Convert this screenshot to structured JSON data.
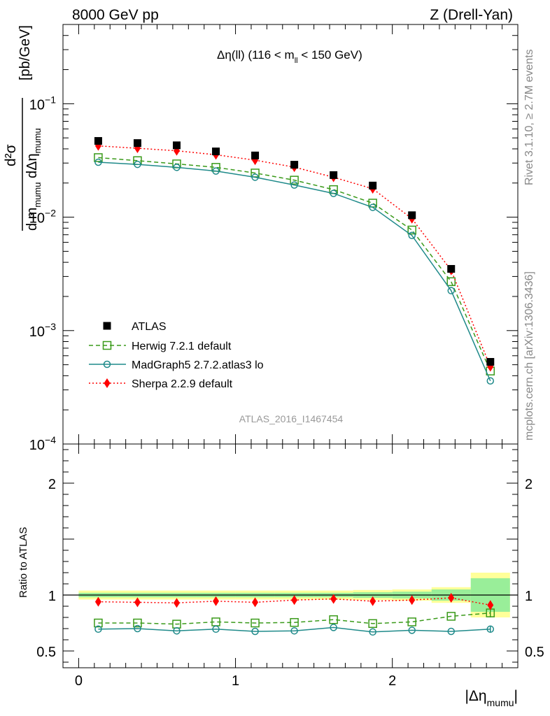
{
  "header": {
    "left_label": "8000 GeV pp",
    "right_label": "Z (Drell-Yan)"
  },
  "side_labels": {
    "rivet": "Rivet 3.1.10, ≥ 2.7M events",
    "mcplots": "mcplots.cern.ch [arXiv:1306.3436]"
  },
  "plot": {
    "title_main": "Δη(ll) (116 < m",
    "title_sub": "ll",
    "title_end": " < 150 GeV)",
    "analysis_id": "ATLAS_2016_I1467454",
    "ylabel_unit": "[pb/GeV]",
    "ylabel_num": "d²σ",
    "ylabel_den": "d m",
    "ylabel_den_sub": "mumu",
    "ylabel_den_mid": " dΔη",
    "ylabel_den_sub2": "mumu",
    "ratio_ylabel": "Ratio to ATLAS",
    "xlabel": "|Δη",
    "xlabel_sub": "mumu",
    "xlabel_end": "|"
  },
  "chart_data": {
    "type": "line",
    "x": [
      0.125,
      0.375,
      0.625,
      0.875,
      1.125,
      1.375,
      1.625,
      1.875,
      2.125,
      2.375,
      2.625
    ],
    "bin_edges": [
      0.0,
      0.25,
      0.5,
      0.75,
      1.0,
      1.25,
      1.5,
      1.75,
      2.0,
      2.25,
      2.5,
      2.75
    ],
    "xlim": [
      -0.1,
      2.8
    ],
    "xticks": [
      0,
      1,
      2
    ],
    "main": {
      "yscale": "log",
      "ylim": [
        0.0001,
        0.5
      ],
      "yticks": [
        {
          "value": 0.1,
          "base": "10",
          "exp": "−1"
        },
        {
          "value": 0.01,
          "base": "10",
          "exp": "−2"
        },
        {
          "value": 0.001,
          "base": "10",
          "exp": "−3"
        },
        {
          "value": 0.0001,
          "base": "10",
          "exp": "−4"
        }
      ]
    },
    "ratio": {
      "ylim": [
        0.35,
        2.35
      ],
      "yticks": [
        0.5,
        1,
        2
      ],
      "ytick_labels": [
        "0.5",
        "1",
        "2"
      ],
      "band_inner": [
        0.02,
        0.02,
        0.02,
        0.02,
        0.02,
        0.02,
        0.02,
        0.025,
        0.03,
        0.05,
        0.15
      ],
      "band_outer": [
        0.04,
        0.04,
        0.04,
        0.04,
        0.04,
        0.04,
        0.04,
        0.045,
        0.05,
        0.07,
        0.2
      ]
    },
    "series": [
      {
        "name": "ATLAS",
        "style": "data",
        "color": "#000000",
        "values": [
          0.047,
          0.045,
          0.043,
          0.038,
          0.035,
          0.029,
          0.0235,
          0.019,
          0.0104,
          0.0035,
          0.00053
        ],
        "ratio": [
          1,
          1,
          1,
          1,
          1,
          1,
          1,
          1,
          1,
          1,
          1
        ]
      },
      {
        "name": "Herwig 7.2.1 default",
        "style": "dashed-square",
        "color": "#3a9a1a",
        "values": [
          0.0335,
          0.0315,
          0.0295,
          0.0275,
          0.0245,
          0.0212,
          0.0175,
          0.0133,
          0.0077,
          0.0027,
          0.00044
        ],
        "ratio": [
          0.75,
          0.75,
          0.74,
          0.76,
          0.75,
          0.755,
          0.78,
          0.745,
          0.76,
          0.81,
          0.84
        ],
        "ratio_err": [
          0,
          0,
          0,
          0,
          0,
          0,
          0,
          0,
          0,
          0,
          0.04
        ]
      },
      {
        "name": "MadGraph5 2.7.2.atlas3 lo",
        "style": "solid-circle",
        "color": "#1f8a8a",
        "values": [
          0.0305,
          0.0292,
          0.0275,
          0.0255,
          0.0225,
          0.0192,
          0.0162,
          0.0122,
          0.0069,
          0.00225,
          0.00036
        ],
        "ratio": [
          0.695,
          0.7,
          0.68,
          0.695,
          0.675,
          0.68,
          0.71,
          0.67,
          0.685,
          0.675,
          0.695
        ],
        "ratio_err": [
          0,
          0,
          0,
          0,
          0,
          0,
          0,
          0,
          0,
          0,
          0.03
        ]
      },
      {
        "name": "Sherpa 2.2.9 default",
        "style": "dotted-diamond",
        "color": "#ff0000",
        "values": [
          0.0425,
          0.0405,
          0.0385,
          0.0355,
          0.0318,
          0.0276,
          0.0225,
          0.0178,
          0.0097,
          0.0034,
          0.00048
        ],
        "ratio": [
          0.94,
          0.935,
          0.93,
          0.945,
          0.935,
          0.955,
          0.965,
          0.945,
          0.955,
          0.975,
          0.91
        ],
        "ratio_err": [
          0,
          0,
          0,
          0,
          0,
          0,
          0,
          0,
          0,
          0,
          0.04
        ]
      }
    ],
    "legend": "bottom-left"
  }
}
